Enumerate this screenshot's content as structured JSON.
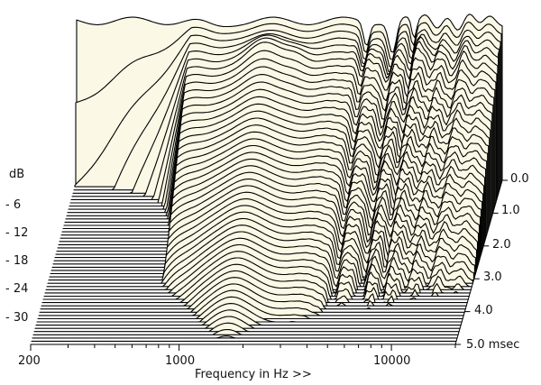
{
  "chart_data": {
    "type": "waterfall",
    "x_axis": {
      "label": "Frequency in Hz >>",
      "scale": "log",
      "ticks": [
        "200",
        "1000",
        "10000"
      ]
    },
    "y_axis": {
      "unit": "dB",
      "ticks": [
        "- 6",
        "- 12",
        "- 18",
        "- 24",
        "- 30"
      ]
    },
    "z_axis": {
      "unit": "msec",
      "ticks": [
        "0.0",
        "1.0",
        "2.0",
        "3.0",
        "4.0",
        "5.0"
      ],
      "range": [
        0,
        5
      ]
    },
    "slice_count": 52,
    "colors": {
      "fill": "#fbf8e6",
      "line": "#000000",
      "background": "#ffffff"
    }
  },
  "labels": {
    "db_unit": "dB",
    "db_ticks": [
      "- 6",
      "- 12",
      "- 18",
      "- 24",
      "- 30"
    ],
    "time_ticks": [
      "0.0",
      "1.0",
      "2.0",
      "3.0",
      "4.0"
    ],
    "time_last": "5.0  msec",
    "freq_ticks": [
      "200",
      "1000",
      "10000"
    ],
    "freq_label": "Frequency in Hz >>"
  }
}
